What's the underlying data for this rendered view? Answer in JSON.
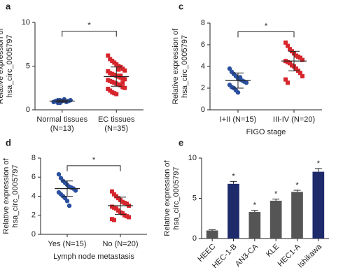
{
  "chart_data": [
    {
      "type": "dotplot",
      "panel": "a",
      "ylabel": [
        "Relative expression of",
        "hsa_circ_0005797"
      ],
      "categories": [
        [
          "Normal tissues",
          "(N=13)"
        ],
        [
          "EC tissues",
          "(N=35)"
        ]
      ],
      "groups": [
        {
          "color": "#2a4f9e",
          "marker": "circle",
          "mean": 1.0,
          "sd": 0.12,
          "values": [
            0.9,
            1.0,
            1.1,
            0.8,
            1.0,
            1.2,
            0.9,
            1.0,
            1.1,
            0.9,
            1.0,
            0.8,
            1.1
          ]
        },
        {
          "color": "#d6262c",
          "marker": "square",
          "mean": 3.8,
          "sd": 1.1,
          "values": [
            6.2,
            5.8,
            5.6,
            5.4,
            5.2,
            5.0,
            4.9,
            4.7,
            4.5,
            4.4,
            4.2,
            4.1,
            4.0,
            3.9,
            3.8,
            3.7,
            3.6,
            3.5,
            3.4,
            3.3,
            3.2,
            3.1,
            3.0,
            2.9,
            2.8,
            2.6,
            2.5,
            2.4,
            2.2,
            2.0,
            1.9,
            1.8,
            4.6,
            3.9,
            3.1
          ]
        }
      ],
      "significance": "*",
      "ylim": [
        0,
        10
      ],
      "yticks": [
        0,
        5,
        10
      ]
    },
    {
      "type": "dotplot",
      "panel": "c",
      "ylabel": [
        "Relative expression of",
        "hsa_circ_0005797"
      ],
      "xlabel": "FIGO stage",
      "categories": [
        [
          "I+II (N=15)"
        ],
        [
          "III-IV (N=20)"
        ]
      ],
      "groups": [
        {
          "color": "#2a4f9e",
          "marker": "circle",
          "mean": 2.7,
          "sd": 0.7,
          "values": [
            3.8,
            3.5,
            3.3,
            3.1,
            2.9,
            2.8,
            2.7,
            2.6,
            2.5,
            2.3,
            2.1,
            2.0,
            1.8,
            1.6,
            3.0
          ]
        },
        {
          "color": "#d6262c",
          "marker": "square",
          "mean": 4.5,
          "sd": 0.9,
          "values": [
            6.2,
            5.9,
            5.6,
            5.4,
            5.2,
            5.0,
            4.9,
            4.8,
            4.6,
            4.5,
            4.4,
            4.3,
            4.1,
            4.0,
            3.8,
            3.6,
            3.4,
            3.1,
            2.8,
            2.5
          ]
        }
      ],
      "significance": "*",
      "ylim": [
        0,
        8
      ],
      "yticks": [
        0,
        2,
        4,
        6,
        8
      ]
    },
    {
      "type": "dotplot",
      "panel": "d",
      "ylabel": [
        "Relative expression of",
        "hsa_circ_0005797"
      ],
      "xlabel": "Lymph node metastasis",
      "categories": [
        [
          "Yes (N=15)"
        ],
        [
          "No (N=20)"
        ]
      ],
      "groups": [
        {
          "color": "#2a4f9e",
          "marker": "circle",
          "mean": 4.8,
          "sd": 0.8,
          "values": [
            6.3,
            5.9,
            5.6,
            5.4,
            5.2,
            5.0,
            4.9,
            4.8,
            4.6,
            4.4,
            4.2,
            4.0,
            3.8,
            3.5,
            3.0
          ]
        },
        {
          "color": "#d6262c",
          "marker": "square",
          "mean": 3.0,
          "sd": 0.9,
          "values": [
            4.5,
            4.2,
            4.0,
            3.8,
            3.6,
            3.4,
            3.3,
            3.2,
            3.0,
            2.9,
            2.8,
            2.7,
            2.5,
            2.3,
            2.2,
            2.0,
            1.9,
            1.8,
            1.6,
            1.5
          ]
        }
      ],
      "significance": "*",
      "ylim": [
        0,
        8
      ],
      "yticks": [
        0,
        2,
        4,
        6,
        8
      ]
    },
    {
      "type": "bar",
      "panel": "e",
      "ylabel": [
        "Relative expression of",
        "hsa_circ_0005797"
      ],
      "categories": [
        "HEEC",
        "HEC-1-B",
        "AN3-CA",
        "KLE",
        "HEC1-A",
        "Ishikawa"
      ],
      "values": [
        1.0,
        6.8,
        3.3,
        4.7,
        5.8,
        8.3
      ],
      "errors": [
        0.1,
        0.3,
        0.2,
        0.2,
        0.2,
        0.4
      ],
      "colors": [
        "#555555",
        "#1f2a6b",
        "#555555",
        "#555555",
        "#555555",
        "#1f2a6b"
      ],
      "significance": [
        null,
        "*",
        "*",
        "*",
        "*",
        "*"
      ],
      "ylim": [
        0,
        10
      ],
      "yticks": [
        0,
        5,
        10
      ]
    }
  ]
}
